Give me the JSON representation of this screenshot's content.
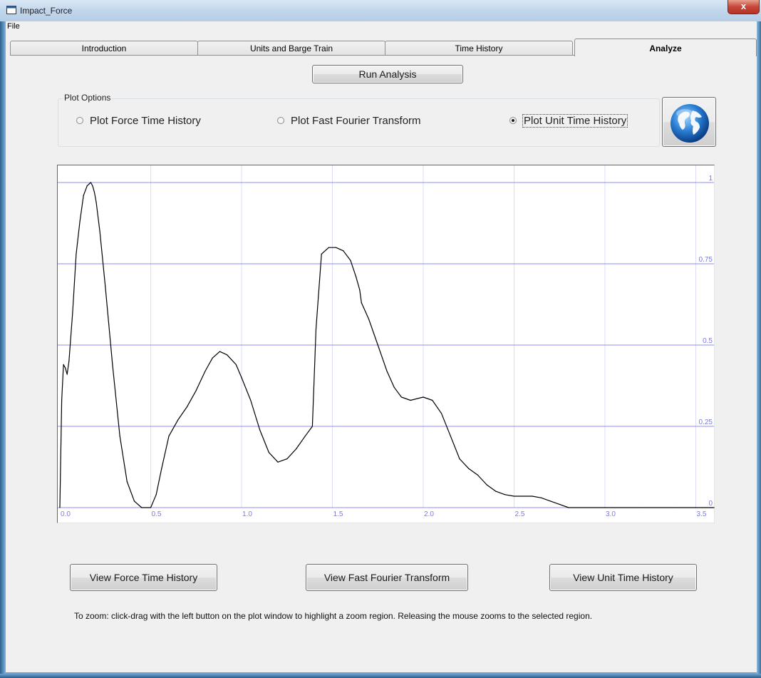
{
  "window": {
    "title": "Impact_Force",
    "close_glyph": "x"
  },
  "menu": {
    "file": "File"
  },
  "tabs": [
    {
      "label": "Introduction",
      "active": false
    },
    {
      "label": "Units and Barge Train",
      "active": false
    },
    {
      "label": "Time History",
      "active": false
    },
    {
      "label": "Analyze",
      "active": true
    }
  ],
  "run_button": "Run Analysis",
  "plot_options": {
    "label": "Plot Options",
    "options": [
      {
        "label": "Plot Force Time History",
        "selected": false
      },
      {
        "label": "Plot Fast Fourier Transform",
        "selected": false
      },
      {
        "label": "Plot Unit Time History",
        "selected": true
      }
    ]
  },
  "globe_button_icon": "globe-icon",
  "chart_data": {
    "type": "line",
    "title": "",
    "xlabel": "",
    "ylabel": "",
    "xlim": [
      0,
      3.6
    ],
    "ylim": [
      0,
      1
    ],
    "x_ticks": [
      "0.0",
      "0.5",
      "1.0",
      "1.5",
      "2.0",
      "2.5",
      "3.0",
      "3.5"
    ],
    "y_ticks": [
      "0",
      "0.25",
      "0.5",
      "0.75",
      "1"
    ],
    "grid": true,
    "series": [
      {
        "color": "#000000",
        "x": [
          0.0,
          0.01,
          0.02,
          0.03,
          0.04,
          0.05,
          0.07,
          0.09,
          0.11,
          0.13,
          0.15,
          0.16,
          0.17,
          0.18,
          0.19,
          0.2,
          0.22,
          0.25,
          0.29,
          0.33,
          0.37,
          0.41,
          0.45,
          0.48,
          0.5,
          0.53,
          0.56,
          0.6,
          0.65,
          0.7,
          0.75,
          0.8,
          0.84,
          0.88,
          0.92,
          0.97,
          1.0,
          1.05,
          1.1,
          1.15,
          1.2,
          1.25,
          1.3,
          1.35,
          1.39,
          1.41,
          1.44,
          1.48,
          1.52,
          1.56,
          1.6,
          1.63,
          1.65,
          1.66,
          1.7,
          1.75,
          1.8,
          1.84,
          1.88,
          1.93,
          2.0,
          2.05,
          2.1,
          2.15,
          2.2,
          2.25,
          2.3,
          2.35,
          2.4,
          2.45,
          2.5,
          2.55,
          2.6,
          2.65,
          2.7,
          2.75,
          2.8,
          2.9,
          3.0,
          3.1,
          3.2,
          3.3,
          3.4,
          3.45,
          3.5,
          3.55,
          3.6
        ],
        "y": [
          0.0,
          0.33,
          0.44,
          0.43,
          0.41,
          0.45,
          0.6,
          0.78,
          0.88,
          0.96,
          0.99,
          0.995,
          1.0,
          0.99,
          0.97,
          0.94,
          0.85,
          0.68,
          0.44,
          0.22,
          0.08,
          0.02,
          0.0,
          0.0,
          0.0,
          0.04,
          0.12,
          0.22,
          0.27,
          0.31,
          0.36,
          0.42,
          0.46,
          0.48,
          0.47,
          0.44,
          0.4,
          0.33,
          0.24,
          0.17,
          0.14,
          0.15,
          0.18,
          0.22,
          0.25,
          0.55,
          0.78,
          0.8,
          0.8,
          0.79,
          0.76,
          0.71,
          0.67,
          0.63,
          0.58,
          0.5,
          0.42,
          0.37,
          0.34,
          0.33,
          0.34,
          0.33,
          0.29,
          0.22,
          0.15,
          0.12,
          0.1,
          0.07,
          0.05,
          0.04,
          0.035,
          0.035,
          0.035,
          0.03,
          0.02,
          0.01,
          0.0,
          0.0,
          0.0,
          0.0,
          0.0,
          0.0,
          0.0,
          0.0,
          0.0,
          0.0,
          0.0
        ]
      }
    ]
  },
  "bottom_buttons": {
    "force": "View Force Time History",
    "fft": "View Fast Fourier Transform",
    "unit": "View Unit Time History"
  },
  "zoom_hint": "To zoom:  click-drag with the left button on the plot window to highlight a zoom region.  Releasing the mouse zooms to the selected region.",
  "colors": {
    "grid": "#8c8cf0",
    "tick_label": "#7b7be6",
    "curve": "#000000"
  }
}
